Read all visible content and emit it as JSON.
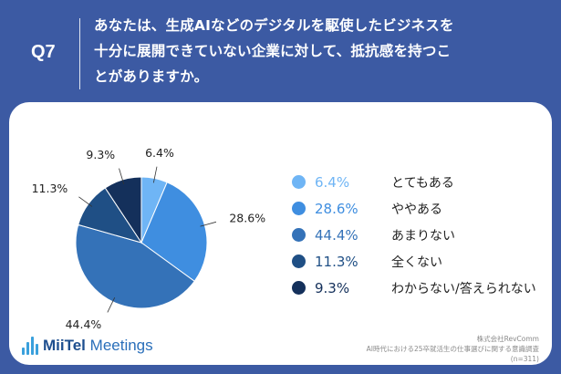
{
  "header": {
    "qnum": "Q7",
    "question_lines": [
      "あなたは、生成AIなどのデジタルを駆使したビジネスを",
      "十分に展開できていない企業に対して、抵抗感を持つこ",
      "とがありますか。"
    ]
  },
  "chart_data": {
    "type": "pie",
    "categories": [
      "とてもある",
      "ややある",
      "あまりない",
      "全くない",
      "わからない/答えられない"
    ],
    "values": [
      6.4,
      28.6,
      44.4,
      11.3,
      9.3
    ],
    "value_labels": [
      "6.4%",
      "28.6%",
      "44.4%",
      "11.3%",
      "9.3%"
    ],
    "colors": [
      "#6fb5f5",
      "#3f8ee0",
      "#3472b8",
      "#1f4f85",
      "#14305b"
    ],
    "legend_placement": "right",
    "start_angle_deg": 0,
    "direction": "clockwise"
  },
  "logo": {
    "brand": "MiiTel",
    "product": "Meetings"
  },
  "source": {
    "company": "株式会社RevComm",
    "survey": "AI時代における25卒就活生の仕事選びに関する意識調査",
    "sample": "(n=311)"
  }
}
